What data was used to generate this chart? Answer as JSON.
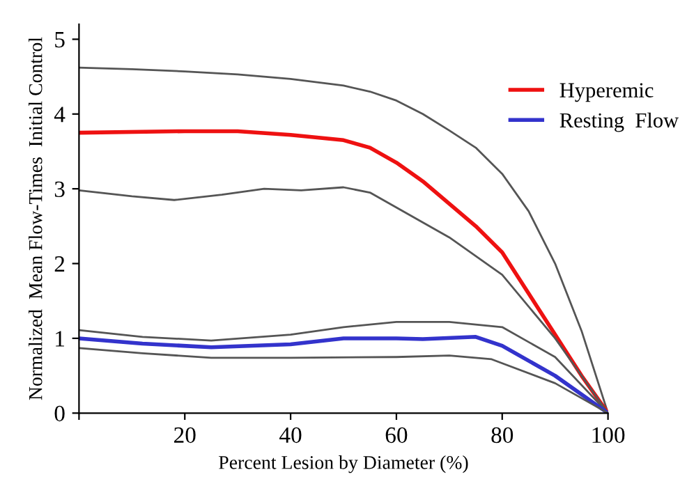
{
  "chart_data": {
    "type": "line",
    "xlabel": "Percent Lesion by Diameter (%)",
    "ylabel": "Normalized  Mean Flow-Times  Initial Control",
    "xlim": [
      0,
      100
    ],
    "xticks": [
      {
        "value": 0,
        "label": null
      },
      20,
      40,
      60,
      80,
      100
    ],
    "ylim": [
      0,
      5.2
    ],
    "yticks": [
      0,
      1,
      2,
      3,
      4,
      5
    ],
    "grid": false,
    "legend": "top right",
    "marker": "none",
    "line_style": "solid",
    "series": [
      {
        "color": "#555555",
        "x": [
          0,
          10,
          20,
          30,
          40,
          50,
          55,
          60,
          65,
          70,
          75,
          80,
          85,
          90,
          95,
          100
        ],
        "values": [
          4.62,
          4.6,
          4.57,
          4.53,
          4.47,
          4.38,
          4.3,
          4.18,
          4.0,
          3.78,
          3.55,
          3.2,
          2.7,
          2.0,
          1.1,
          0
        ]
      },
      {
        "name": "Hyperemic",
        "color": "#ee1111",
        "x": [
          0,
          20,
          30,
          40,
          50,
          55,
          60,
          65,
          70,
          75,
          80,
          85,
          90,
          95,
          100
        ],
        "values": [
          3.75,
          3.77,
          3.77,
          3.72,
          3.65,
          3.55,
          3.35,
          3.1,
          2.8,
          2.5,
          2.15,
          1.6,
          1.05,
          0.5,
          0
        ]
      },
      {
        "color": "#555555",
        "x": [
          0,
          10,
          18,
          27,
          35,
          42,
          50,
          55,
          60,
          70,
          80,
          90,
          100
        ],
        "values": [
          2.98,
          2.9,
          2.85,
          2.92,
          3.0,
          2.98,
          3.02,
          2.95,
          2.75,
          2.35,
          1.85,
          1.0,
          0
        ]
      },
      {
        "color": "#555555",
        "x": [
          0,
          12,
          25,
          40,
          50,
          60,
          70,
          80,
          90,
          100
        ],
        "values": [
          1.11,
          1.02,
          0.97,
          1.05,
          1.15,
          1.22,
          1.22,
          1.15,
          0.75,
          0
        ]
      },
      {
        "name": "Resting  Flow",
        "color": "#3333cc",
        "x": [
          0,
          12,
          25,
          40,
          50,
          60,
          65,
          75,
          80,
          90,
          100
        ],
        "values": [
          1.0,
          0.93,
          0.88,
          0.92,
          1.0,
          1.0,
          0.99,
          1.02,
          0.9,
          0.5,
          0
        ]
      },
      {
        "color": "#555555",
        "x": [
          0,
          12,
          25,
          40,
          60,
          70,
          78,
          90,
          100
        ],
        "values": [
          0.87,
          0.8,
          0.74,
          0.74,
          0.75,
          0.77,
          0.72,
          0.4,
          0
        ]
      }
    ]
  }
}
